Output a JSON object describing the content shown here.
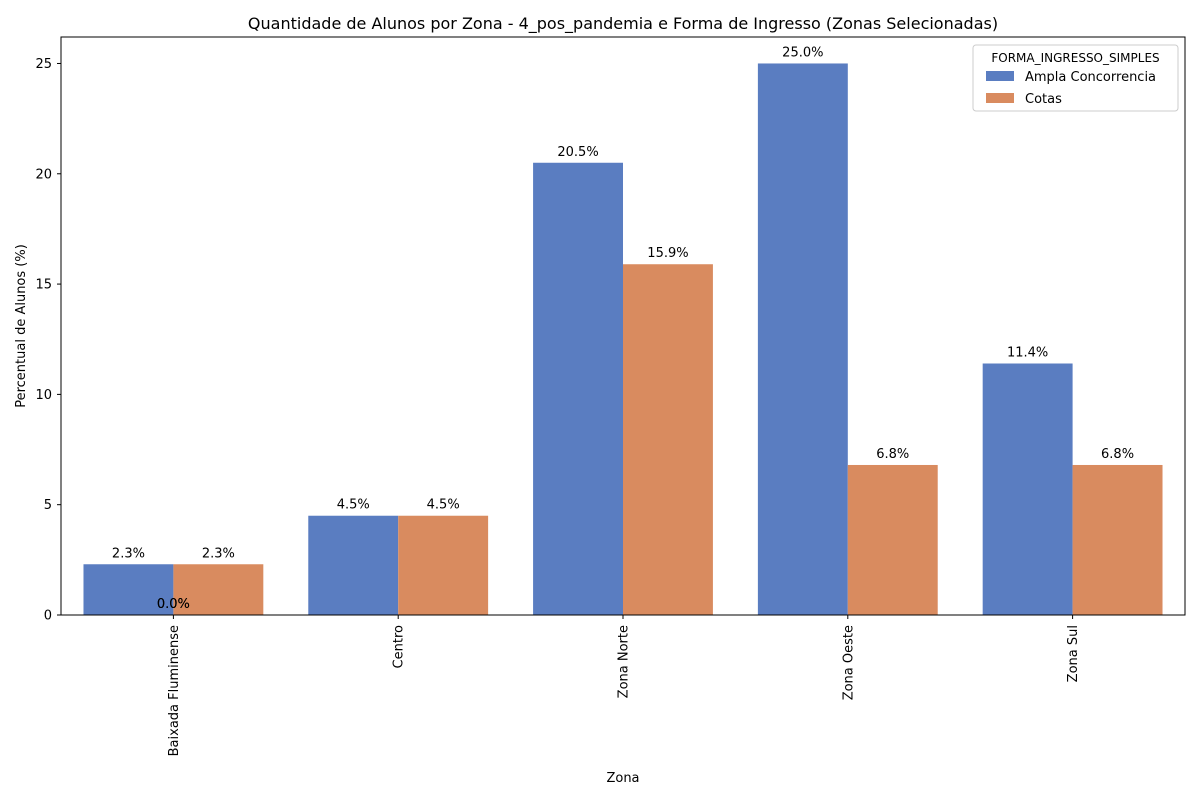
{
  "chart_data": {
    "type": "bar",
    "title": "Quantidade de Alunos por Zona - 4_pos_pandemia e Forma de Ingresso (Zonas Selecionadas)",
    "xlabel": "Zona",
    "ylabel": "Percentual de Alunos (%)",
    "categories": [
      "Baixada Fluminense",
      "Centro",
      "Zona Norte",
      "Zona Oeste",
      "Zona Sul"
    ],
    "series": [
      {
        "name": "Ampla Concorrencia",
        "values": [
          2.3,
          4.5,
          20.5,
          25.0,
          11.4
        ],
        "labels": [
          "2.3%",
          "4.5%",
          "20.5%",
          "25.0%",
          "11.4%"
        ],
        "color": "#5a7dc1"
      },
      {
        "name": "Cotas",
        "values": [
          2.3,
          4.5,
          15.9,
          6.8,
          6.8
        ],
        "labels": [
          "2.3%",
          "4.5%",
          "15.9%",
          "6.8%",
          "6.8%"
        ],
        "color": "#d98b5f"
      }
    ],
    "extra_labels": [
      {
        "category": "Baixada Fluminense",
        "value": 0,
        "text": "0.0%"
      },
      {
        "category": "Baixada Fluminense",
        "value": 0,
        "text": "0.0%"
      }
    ],
    "ylim": [
      0,
      26.2
    ],
    "yticks": [
      0,
      5,
      10,
      15,
      20,
      25
    ],
    "tick_label_rotation": "vertical",
    "grid": false,
    "legend": {
      "title": "FORMA_INGRESSO_SIMPLES",
      "placement": "top-right"
    }
  }
}
